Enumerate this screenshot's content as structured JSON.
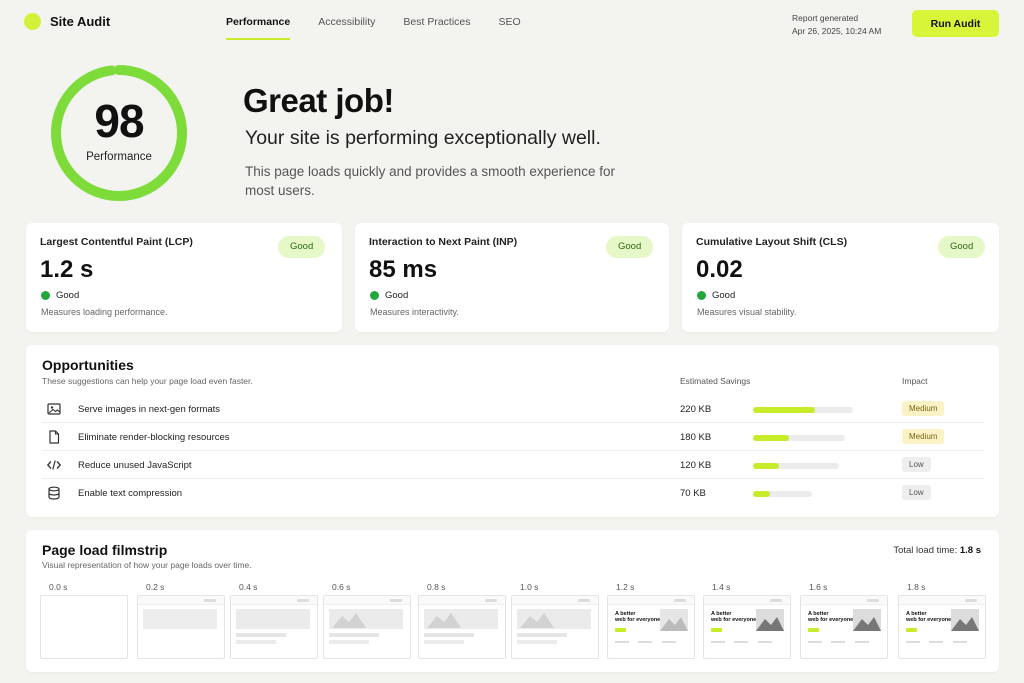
{
  "header": {
    "app_title": "Site Audit",
    "tabs": [
      "Performance",
      "Accessibility",
      "Best Practices",
      "SEO"
    ],
    "active_tab": 0,
    "report_label": "Report generated",
    "report_date": "Apr 26, 2025, 10:24 AM",
    "run_button": "Run Audit"
  },
  "hero": {
    "score": "98",
    "score_label": "Performance",
    "score_fraction": 0.98,
    "title": "Great job!",
    "subtitle": "Your site is performing exceptionally well.",
    "description": "This page loads quickly and provides a smooth experience for most users."
  },
  "metrics": [
    {
      "name": "Largest Contentful Paint (LCP)",
      "value": "1.2 s",
      "badge": "Good",
      "status": "Good",
      "description": "Measures loading performance."
    },
    {
      "name": "Interaction to Next Paint (INP)",
      "value": "85 ms",
      "badge": "Good",
      "status": "Good",
      "description": "Measures interactivity."
    },
    {
      "name": "Cumulative Layout Shift (CLS)",
      "value": "0.02",
      "badge": "Good",
      "status": "Good",
      "description": "Measures visual stability."
    }
  ],
  "opportunities": {
    "title": "Opportunities",
    "subtitle": "These suggestions can help your page load even faster.",
    "savings_header": "Estimated Savings",
    "impact_header": "Impact",
    "items": [
      {
        "icon": "image-icon",
        "label": "Serve images in next-gen formats",
        "savings": "220 KB",
        "bar_fraction": 0.62,
        "impact": "Medium"
      },
      {
        "icon": "document-icon",
        "label": "Eliminate render-blocking resources",
        "savings": "180 KB",
        "bar_fraction": 0.39,
        "impact": "Medium"
      },
      {
        "icon": "code-icon",
        "label": "Reduce unused JavaScript",
        "savings": "120 KB",
        "bar_fraction": 0.3,
        "impact": "Low"
      },
      {
        "icon": "database-icon",
        "label": "Enable text compression",
        "savings": "70 KB",
        "bar_fraction": 0.29,
        "impact": "Low"
      }
    ]
  },
  "filmstrip": {
    "title": "Page load filmstrip",
    "subtitle": "Visual representation of how your page loads over time.",
    "total_label": "Total load time:",
    "total_value": "1.8 s",
    "frames": [
      {
        "time": "0.0 s",
        "stage": 0
      },
      {
        "time": "0.2 s",
        "stage": 1
      },
      {
        "time": "0.4 s",
        "stage": 2
      },
      {
        "time": "0.6 s",
        "stage": 3
      },
      {
        "time": "0.8 s",
        "stage": 4
      },
      {
        "time": "1.0 s",
        "stage": 4
      },
      {
        "time": "1.2 s",
        "stage": 5
      },
      {
        "time": "1.4 s",
        "stage": 6
      },
      {
        "time": "1.6 s",
        "stage": 6
      },
      {
        "time": "1.8 s",
        "stage": 6
      }
    ],
    "frame_headline_line1": "A better",
    "frame_headline_line2": "web for everyone"
  },
  "colors": {
    "accent": "#d8f53a",
    "good_green": "#22a83a",
    "gauge_green": "#7ddc3a"
  }
}
